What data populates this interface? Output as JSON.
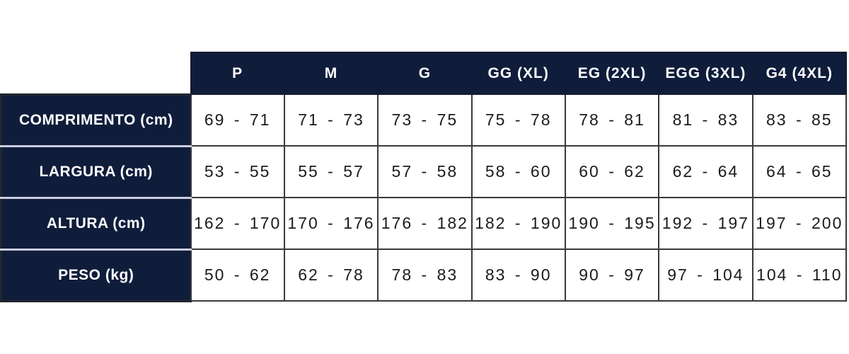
{
  "colors": {
    "navy_header": "#0f1d3b",
    "cell_border": "#3a3a3a",
    "label_separator": "#c8cde0",
    "header_text": "#ffffff",
    "data_text": "#1b1b1b",
    "background": "#ffffff"
  },
  "chart_data": {
    "type": "table",
    "column_headers": [
      "P",
      "M",
      "G",
      "GG (XL)",
      "EG (2XL)",
      "EGG (3XL)",
      "G4 (4XL)"
    ],
    "row_headers": [
      "COMPRIMENTO (cm)",
      "LARGURA (cm)",
      "ALTURA (cm)",
      "PESO (kg)"
    ],
    "rows": [
      [
        "69 - 71",
        "71 - 73",
        "73 - 75",
        "75 - 78",
        "78 - 81",
        "81 - 83",
        "83 - 85"
      ],
      [
        "53 - 55",
        "55 - 57",
        "57 - 58",
        "58 - 60",
        "60 - 62",
        "62 - 64",
        "64 - 65"
      ],
      [
        "162 - 170",
        "170 - 176",
        "176 - 182",
        "182 - 190",
        "190 - 195",
        "192 - 197",
        "197 - 200"
      ],
      [
        "50 - 62",
        "62 - 78",
        "78 - 83",
        "83 - 90",
        "90 - 97",
        "97 - 104",
        "104 - 110"
      ]
    ]
  }
}
